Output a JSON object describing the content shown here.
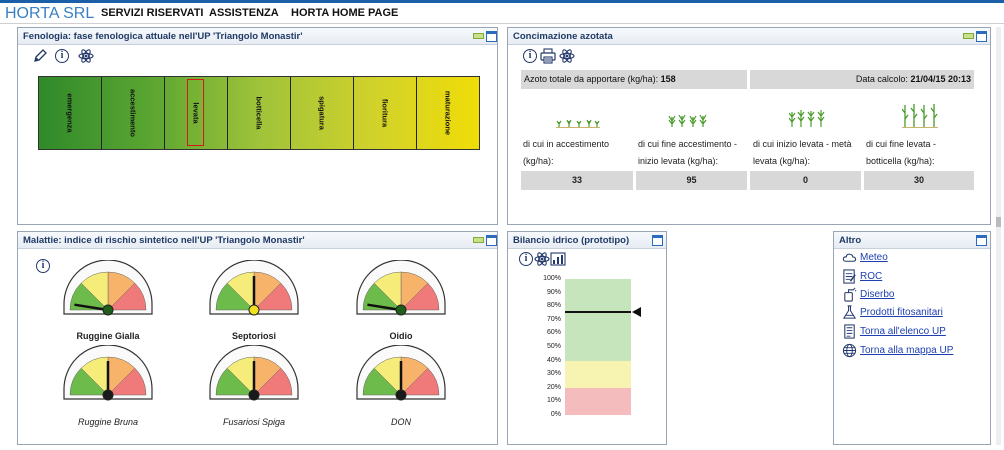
{
  "header": {
    "brand": "HORTA SRL",
    "nav": [
      "SERVIZI RISERVATI",
      "ASSISTENZA",
      "HORTA HOME PAGE"
    ]
  },
  "fenologia": {
    "title": "Fenologia: fase fenologica attuale nell'UP 'Triangolo Monastir'",
    "phases": [
      "emergenza",
      "accestimento",
      "levata",
      "botticella",
      "spigatura",
      "fioritura",
      "maturazione"
    ],
    "current_phase": "levata",
    "icons": [
      "pencil-icon",
      "info-icon",
      "atom-icon"
    ]
  },
  "concimazione": {
    "title": "Concimazione azotata",
    "azoto_label": "Azoto totale da apportare (kg/ha):",
    "azoto_value": "158",
    "data_label": "Data calcolo:",
    "data_value": "21/04/15 20:13",
    "items": [
      {
        "label": "di cui in accestimento (kg/ha):",
        "value": "33"
      },
      {
        "label": "di cui fine accestimento - inizio levata (kg/ha):",
        "value": "95"
      },
      {
        "label": "di cui inizio levata - metà levata (kg/ha):",
        "value": "0"
      },
      {
        "label": "di cui fine levata - botticella (kg/ha):",
        "value": "30"
      }
    ],
    "icons": [
      "info-icon",
      "print-icon",
      "atom-icon"
    ]
  },
  "malattie": {
    "title": "Malattie: indice di rischio sintetico nell'UP 'Triangolo Monastir'",
    "gauges": [
      {
        "name": "Ruggine Gialla",
        "style": "bold",
        "level": 0.05,
        "hub": "#1f5f1a"
      },
      {
        "name": "Septoriosi",
        "style": "bold",
        "level": 0.5,
        "hub": "#f0e020"
      },
      {
        "name": "Oidio",
        "style": "bold",
        "level": 0.05,
        "hub": "#1f5f1a"
      },
      {
        "name": "Ruggine Bruna",
        "style": "italic",
        "level": 0.5,
        "hub": "#1a1a1a"
      },
      {
        "name": "Fusariosi Spiga",
        "style": "italic",
        "level": 0.5,
        "hub": "#1a1a1a"
      },
      {
        "name": "DON",
        "style": "italic",
        "level": 0.5,
        "hub": "#1a1a1a"
      }
    ],
    "colors": {
      "green": "#6dbb4a",
      "yellow": "#f6ec7a",
      "orange": "#f7b36a",
      "red": "#f07a7a"
    }
  },
  "bilancio": {
    "title": "Bilancio idrico (prototipo)",
    "yticks": [
      "100%",
      "90%",
      "80%",
      "70%",
      "60%",
      "50%",
      "40%",
      "30%",
      "20%",
      "10%",
      "0%"
    ],
    "current_level": 0.76,
    "zones": [
      {
        "from": 0.0,
        "to": 0.2,
        "color": "#f4bcbc"
      },
      {
        "from": 0.2,
        "to": 0.4,
        "color": "#f7f3b0"
      },
      {
        "from": 0.4,
        "to": 1.0,
        "color": "#c6e5bd"
      }
    ],
    "icons": [
      "info-icon",
      "atom-icon",
      "chart-icon"
    ]
  },
  "altro": {
    "title": "Altro",
    "links": [
      {
        "label": "Meteo",
        "icon": "cloud-icon"
      },
      {
        "label": "ROC",
        "icon": "document-icon"
      },
      {
        "label": "Diserbo",
        "icon": "sprayer-icon"
      },
      {
        "label": "Prodotti fitosanitari",
        "icon": "flask-icon"
      },
      {
        "label": "Torna all'elenco UP",
        "icon": "list-icon"
      },
      {
        "label": "Torna alla mappa UP",
        "icon": "globe-icon"
      }
    ]
  }
}
